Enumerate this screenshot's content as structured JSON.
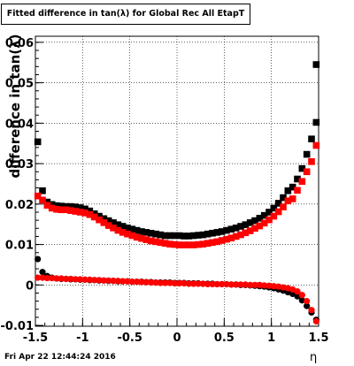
{
  "title": "Fitted difference in tan(λ) for Global Rec All EtapT",
  "ylabel": "difference in tan(λ)",
  "xlabel": "η",
  "timestamp": "Fri Apr 22 12:44:24 2016",
  "colors": {
    "black_series": "#000000",
    "red_series": "#ff0000",
    "grid": "#000000"
  },
  "chart_data": {
    "type": "scatter",
    "title": "Fitted difference in tan(λ) for Global Rec All EtapT",
    "xlabel": "η",
    "ylabel": "difference in tan(λ)",
    "xlim": [
      -1.5,
      1.5
    ],
    "ylim": [
      -0.0102,
      0.0615
    ],
    "x_ticks": [
      "-1.5",
      "-1",
      "-0.5",
      "0",
      "0.5",
      "1",
      "1.5"
    ],
    "y_ticks": [
      "-0.01",
      "0",
      "0.01",
      "0.02",
      "0.03",
      "0.04",
      "0.05",
      "0.06"
    ],
    "x_tick_values": [
      -1.5,
      -1,
      -0.5,
      0,
      0.5,
      1,
      1.5
    ],
    "y_tick_values": [
      -0.01,
      0,
      0.01,
      0.02,
      0.03,
      0.04,
      0.05,
      0.06
    ],
    "grid": true,
    "series": [
      {
        "marker": "square",
        "color": "#000000",
        "points": [
          [
            -1.475,
            0.0354
          ],
          [
            -1.425,
            0.0233
          ],
          [
            -1.375,
            0.0205
          ],
          [
            -1.325,
            0.0199
          ],
          [
            -1.275,
            0.0196
          ],
          [
            -1.225,
            0.0195
          ],
          [
            -1.175,
            0.0194
          ],
          [
            -1.125,
            0.0194
          ],
          [
            -1.075,
            0.0193
          ],
          [
            -1.025,
            0.0191
          ],
          [
            -0.975,
            0.0188
          ],
          [
            -0.925,
            0.0183
          ],
          [
            -0.875,
            0.0176
          ],
          [
            -0.825,
            0.017
          ],
          [
            -0.775,
            0.0164
          ],
          [
            -0.725,
            0.0159
          ],
          [
            -0.675,
            0.0154
          ],
          [
            -0.625,
            0.0149
          ],
          [
            -0.575,
            0.0145
          ],
          [
            -0.525,
            0.0141
          ],
          [
            -0.475,
            0.0138
          ],
          [
            -0.425,
            0.0135
          ],
          [
            -0.375,
            0.0132
          ],
          [
            -0.325,
            0.013
          ],
          [
            -0.275,
            0.0128
          ],
          [
            -0.225,
            0.0126
          ],
          [
            -0.175,
            0.0124
          ],
          [
            -0.125,
            0.0122
          ],
          [
            -0.075,
            0.0122
          ],
          [
            -0.025,
            0.0122
          ],
          [
            0.025,
            0.0122
          ],
          [
            0.075,
            0.0121
          ],
          [
            0.125,
            0.0121
          ],
          [
            0.175,
            0.0122
          ],
          [
            0.225,
            0.0123
          ],
          [
            0.275,
            0.0124
          ],
          [
            0.325,
            0.0126
          ],
          [
            0.375,
            0.0128
          ],
          [
            0.425,
            0.013
          ],
          [
            0.475,
            0.0132
          ],
          [
            0.525,
            0.0135
          ],
          [
            0.575,
            0.0138
          ],
          [
            0.625,
            0.0141
          ],
          [
            0.675,
            0.0145
          ],
          [
            0.725,
            0.0149
          ],
          [
            0.775,
            0.0154
          ],
          [
            0.825,
            0.0159
          ],
          [
            0.875,
            0.0165
          ],
          [
            0.925,
            0.0172
          ],
          [
            0.975,
            0.018
          ],
          [
            1.025,
            0.019
          ],
          [
            1.075,
            0.0202
          ],
          [
            1.125,
            0.0216
          ],
          [
            1.175,
            0.0233
          ],
          [
            1.225,
            0.0242
          ],
          [
            1.275,
            0.0262
          ],
          [
            1.325,
            0.0288
          ],
          [
            1.375,
            0.0323
          ],
          [
            1.425,
            0.0361
          ],
          [
            1.475,
            0.0402
          ],
          [
            1.475,
            0.0545
          ]
        ]
      },
      {
        "marker": "square",
        "color": "#ff0000",
        "points": [
          [
            -1.475,
            0.022
          ],
          [
            -1.425,
            0.021
          ],
          [
            -1.375,
            0.0197
          ],
          [
            -1.325,
            0.019
          ],
          [
            -1.275,
            0.0187
          ],
          [
            -1.225,
            0.0186
          ],
          [
            -1.175,
            0.0186
          ],
          [
            -1.125,
            0.0184
          ],
          [
            -1.075,
            0.0182
          ],
          [
            -1.025,
            0.018
          ],
          [
            -0.975,
            0.0178
          ],
          [
            -0.925,
            0.0174
          ],
          [
            -0.875,
            0.0168
          ],
          [
            -0.825,
            0.0161
          ],
          [
            -0.775,
            0.0154
          ],
          [
            -0.725,
            0.0147
          ],
          [
            -0.675,
            0.0141
          ],
          [
            -0.625,
            0.0135
          ],
          [
            -0.575,
            0.013
          ],
          [
            -0.525,
            0.0126
          ],
          [
            -0.475,
            0.0122
          ],
          [
            -0.425,
            0.0118
          ],
          [
            -0.375,
            0.0115
          ],
          [
            -0.325,
            0.0112
          ],
          [
            -0.275,
            0.0109
          ],
          [
            -0.225,
            0.0107
          ],
          [
            -0.175,
            0.0105
          ],
          [
            -0.125,
            0.0103
          ],
          [
            -0.075,
            0.0101
          ],
          [
            -0.025,
            0.01
          ],
          [
            0.025,
            0.0099
          ],
          [
            0.075,
            0.0099
          ],
          [
            0.125,
            0.0099
          ],
          [
            0.175,
            0.0099
          ],
          [
            0.225,
            0.01
          ],
          [
            0.275,
            0.0101
          ],
          [
            0.325,
            0.0103
          ],
          [
            0.375,
            0.0105
          ],
          [
            0.425,
            0.0107
          ],
          [
            0.475,
            0.011
          ],
          [
            0.525,
            0.0113
          ],
          [
            0.575,
            0.0116
          ],
          [
            0.625,
            0.012
          ],
          [
            0.675,
            0.0124
          ],
          [
            0.725,
            0.0129
          ],
          [
            0.775,
            0.0134
          ],
          [
            0.825,
            0.014
          ],
          [
            0.875,
            0.0146
          ],
          [
            0.925,
            0.0153
          ],
          [
            0.975,
            0.0161
          ],
          [
            1.025,
            0.017
          ],
          [
            1.075,
            0.0181
          ],
          [
            1.125,
            0.0193
          ],
          [
            1.175,
            0.0208
          ],
          [
            1.225,
            0.0213
          ],
          [
            1.275,
            0.0234
          ],
          [
            1.325,
            0.0256
          ],
          [
            1.375,
            0.028
          ],
          [
            1.425,
            0.0305
          ],
          [
            1.475,
            0.0345
          ]
        ]
      },
      {
        "marker": "circle",
        "color": "#000000",
        "points": [
          [
            -1.475,
            0.0064
          ],
          [
            -1.425,
            0.0032
          ],
          [
            -1.375,
            0.0022
          ],
          [
            -1.325,
            0.0018
          ],
          [
            -1.275,
            0.0016
          ],
          [
            -1.225,
            0.0015
          ],
          [
            -1.175,
            0.0015
          ],
          [
            -1.125,
            0.0014
          ],
          [
            -1.075,
            0.0014
          ],
          [
            -1.025,
            0.0013
          ],
          [
            -0.975,
            0.0013
          ],
          [
            -0.925,
            0.0012
          ],
          [
            -0.875,
            0.0012
          ],
          [
            -0.825,
            0.0011
          ],
          [
            -0.775,
            0.0011
          ],
          [
            -0.725,
            0.001
          ],
          [
            -0.675,
            0.001
          ],
          [
            -0.625,
            0.0009
          ],
          [
            -0.575,
            0.0009
          ],
          [
            -0.525,
            0.0009
          ],
          [
            -0.475,
            0.0008
          ],
          [
            -0.425,
            0.0008
          ],
          [
            -0.375,
            0.0008
          ],
          [
            -0.325,
            0.0007
          ],
          [
            -0.275,
            0.0007
          ],
          [
            -0.225,
            0.0006
          ],
          [
            -0.175,
            0.0006
          ],
          [
            -0.125,
            0.0006
          ],
          [
            -0.075,
            0.0006
          ],
          [
            -0.025,
            0.0005
          ],
          [
            0.025,
            0.0005
          ],
          [
            0.075,
            0.0005
          ],
          [
            0.125,
            0.0004
          ],
          [
            0.175,
            0.0004
          ],
          [
            0.225,
            0.0004
          ],
          [
            0.275,
            0.0003
          ],
          [
            0.325,
            0.0003
          ],
          [
            0.375,
            0.0003
          ],
          [
            0.425,
            0.0002
          ],
          [
            0.475,
            0.0002
          ],
          [
            0.525,
            0.0002
          ],
          [
            0.575,
            0.0001
          ],
          [
            0.625,
            0.0001
          ],
          [
            0.675,
            0.0
          ],
          [
            0.725,
            -0.0
          ],
          [
            0.775,
            -0.0001
          ],
          [
            0.825,
            -0.0002
          ],
          [
            0.875,
            -0.0003
          ],
          [
            0.925,
            -0.0004
          ],
          [
            0.975,
            -0.0006
          ],
          [
            1.025,
            -0.0008
          ],
          [
            1.075,
            -0.0011
          ],
          [
            1.125,
            -0.0014
          ],
          [
            1.175,
            -0.0018
          ],
          [
            1.225,
            -0.0022
          ],
          [
            1.275,
            -0.0028
          ],
          [
            1.325,
            -0.0038
          ],
          [
            1.375,
            -0.0052
          ],
          [
            1.425,
            -0.0068
          ],
          [
            1.475,
            -0.0086
          ]
        ]
      },
      {
        "marker": "circle",
        "color": "#ff0000",
        "points": [
          [
            -1.475,
            0.0018
          ],
          [
            -1.425,
            0.0018
          ],
          [
            -1.375,
            0.0017
          ],
          [
            -1.325,
            0.0017
          ],
          [
            -1.275,
            0.0016
          ],
          [
            -1.225,
            0.0016
          ],
          [
            -1.175,
            0.0015
          ],
          [
            -1.125,
            0.0015
          ],
          [
            -1.075,
            0.0014
          ],
          [
            -1.025,
            0.0014
          ],
          [
            -0.975,
            0.0013
          ],
          [
            -0.925,
            0.0013
          ],
          [
            -0.875,
            0.0012
          ],
          [
            -0.825,
            0.0012
          ],
          [
            -0.775,
            0.0011
          ],
          [
            -0.725,
            0.0011
          ],
          [
            -0.675,
            0.001
          ],
          [
            -0.625,
            0.001
          ],
          [
            -0.575,
            0.0009
          ],
          [
            -0.525,
            0.0009
          ],
          [
            -0.475,
            0.0008
          ],
          [
            -0.425,
            0.0008
          ],
          [
            -0.375,
            0.0007
          ],
          [
            -0.325,
            0.0007
          ],
          [
            -0.275,
            0.0006
          ],
          [
            -0.225,
            0.0006
          ],
          [
            -0.175,
            0.0005
          ],
          [
            -0.125,
            0.0005
          ],
          [
            -0.075,
            0.0005
          ],
          [
            -0.025,
            0.0004
          ],
          [
            0.025,
            0.0004
          ],
          [
            0.075,
            0.0004
          ],
          [
            0.125,
            0.0003
          ],
          [
            0.175,
            0.0003
          ],
          [
            0.225,
            0.0003
          ],
          [
            0.275,
            0.0003
          ],
          [
            0.325,
            0.0002
          ],
          [
            0.375,
            0.0002
          ],
          [
            0.425,
            0.0002
          ],
          [
            0.475,
            0.0002
          ],
          [
            0.525,
            0.0002
          ],
          [
            0.575,
            0.0001
          ],
          [
            0.625,
            0.0001
          ],
          [
            0.675,
            0.0001
          ],
          [
            0.725,
            0.0001
          ],
          [
            0.775,
            0.0
          ],
          [
            0.825,
            0.0
          ],
          [
            0.875,
            -0.0
          ],
          [
            0.925,
            -0.0001
          ],
          [
            0.975,
            -0.0002
          ],
          [
            1.025,
            -0.0003
          ],
          [
            1.075,
            -0.0004
          ],
          [
            1.125,
            -0.0006
          ],
          [
            1.175,
            -0.0008
          ],
          [
            1.225,
            -0.0011
          ],
          [
            1.275,
            -0.0016
          ],
          [
            1.325,
            -0.0025
          ],
          [
            1.375,
            -0.004
          ],
          [
            1.425,
            -0.0062
          ],
          [
            1.475,
            -0.009
          ]
        ]
      }
    ]
  }
}
